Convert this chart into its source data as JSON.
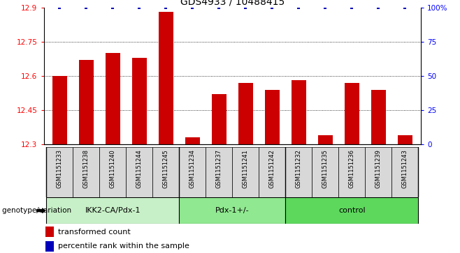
{
  "title": "GDS4933 / 10488415",
  "samples": [
    "GSM1151233",
    "GSM1151238",
    "GSM1151240",
    "GSM1151244",
    "GSM1151245",
    "GSM1151234",
    "GSM1151237",
    "GSM1151241",
    "GSM1151242",
    "GSM1151232",
    "GSM1151235",
    "GSM1151236",
    "GSM1151239",
    "GSM1151243"
  ],
  "red_values": [
    12.6,
    12.67,
    12.7,
    12.68,
    12.88,
    12.33,
    12.52,
    12.57,
    12.54,
    12.58,
    12.34,
    12.57,
    12.54,
    12.34
  ],
  "ylim_left": [
    12.3,
    12.9
  ],
  "ylim_right": [
    0,
    100
  ],
  "yticks_left": [
    12.3,
    12.45,
    12.6,
    12.75,
    12.9
  ],
  "yticks_right": [
    0,
    25,
    50,
    75,
    100
  ],
  "grid_lines": [
    12.45,
    12.6,
    12.75
  ],
  "group_starts": [
    0,
    5,
    9
  ],
  "group_ends": [
    5,
    9,
    14
  ],
  "group_labels": [
    "IKK2-CA/Pdx-1",
    "Pdx-1+/-",
    "control"
  ],
  "group_colors": [
    "#c8f0c8",
    "#90e890",
    "#5dd85d"
  ],
  "group_label_text": "genotype/variation",
  "bar_color": "#cc0000",
  "dot_color": "#0000bb",
  "bar_bottom": 12.3,
  "legend_red": "transformed count",
  "legend_blue": "percentile rank within the sample",
  "title_fontsize": 10,
  "tick_fontsize": 7.5,
  "sample_fontsize": 6.0,
  "group_fontsize": 8
}
